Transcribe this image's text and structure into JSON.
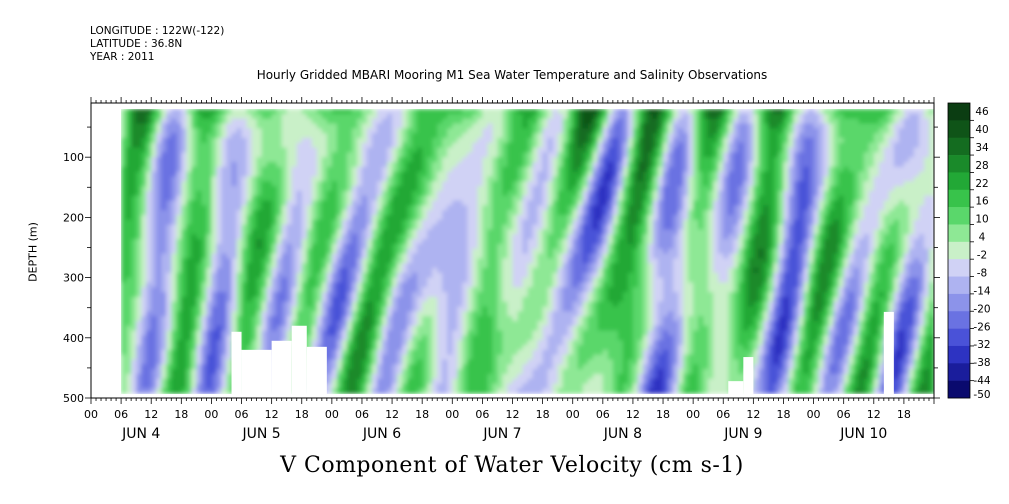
{
  "header": {
    "longitude": "LONGITUDE : 122W(-122)",
    "latitude": "LATITUDE : 36.8N",
    "year": "YEAR : 2011"
  },
  "chart_data": {
    "type": "heatmap",
    "title": "Hourly Gridded MBARI Mooring M1 Sea Water Temperature and Salinity Observations",
    "xlabel": "V Component of Water Velocity (cm s-1)",
    "ylabel": "DEPTH (m)",
    "x_hour_ticks": [
      "00",
      "06",
      "12",
      "18",
      "00",
      "06",
      "12",
      "18",
      "00",
      "06",
      "12",
      "18",
      "00",
      "06",
      "12",
      "18",
      "00",
      "06",
      "12",
      "18",
      "00",
      "06",
      "12",
      "18",
      "00",
      "06",
      "12",
      "18"
    ],
    "x_day_labels": [
      "JUN  4",
      "JUN  5",
      "JUN  6",
      "JUN  7",
      "JUN  8",
      "JUN  9",
      "JUN  10"
    ],
    "y_ticks": [
      100,
      200,
      300,
      400,
      500
    ],
    "ylim": [
      500,
      10
    ],
    "xlim_hours": [
      0,
      168
    ],
    "data_extent_hours": [
      6,
      168
    ],
    "data_extent_depth": [
      20,
      485
    ],
    "colorbar": {
      "labels": [
        "46",
        "40",
        "34",
        "28",
        "22",
        "16",
        "10",
        "4",
        "-2",
        "-8",
        "-14",
        "-20",
        "-26",
        "-32",
        "-38",
        "-44",
        "-50"
      ],
      "colors": [
        "#0b3d12",
        "#0f5418",
        "#146c20",
        "#1a8a2a",
        "#22a836",
        "#38c34b",
        "#5ad76b",
        "#8ee895",
        "#c9f0c8",
        "#d0d2f5",
        "#aeb3f1",
        "#8c93ea",
        "#6a72e2",
        "#4a52d8",
        "#2d33c2",
        "#1a1d9c",
        "#0a0a6e"
      ],
      "min": -50,
      "max": 49
    },
    "missing_regions": [
      {
        "hour_start": 28,
        "hour_end": 30,
        "depth_top": 390
      },
      {
        "hour_start": 30,
        "hour_end": 36,
        "depth_top": 420
      },
      {
        "hour_start": 36,
        "hour_end": 40,
        "depth_top": 405
      },
      {
        "hour_start": 40,
        "hour_end": 43,
        "depth_top": 380
      },
      {
        "hour_start": 43,
        "hour_end": 47,
        "depth_top": 415
      },
      {
        "hour_start": 127,
        "hour_end": 130,
        "depth_top": 472
      },
      {
        "hour_start": 130,
        "hour_end": 132,
        "depth_top": 432
      },
      {
        "hour_start": 158,
        "hour_end": 160,
        "depth_top": 357
      }
    ]
  }
}
